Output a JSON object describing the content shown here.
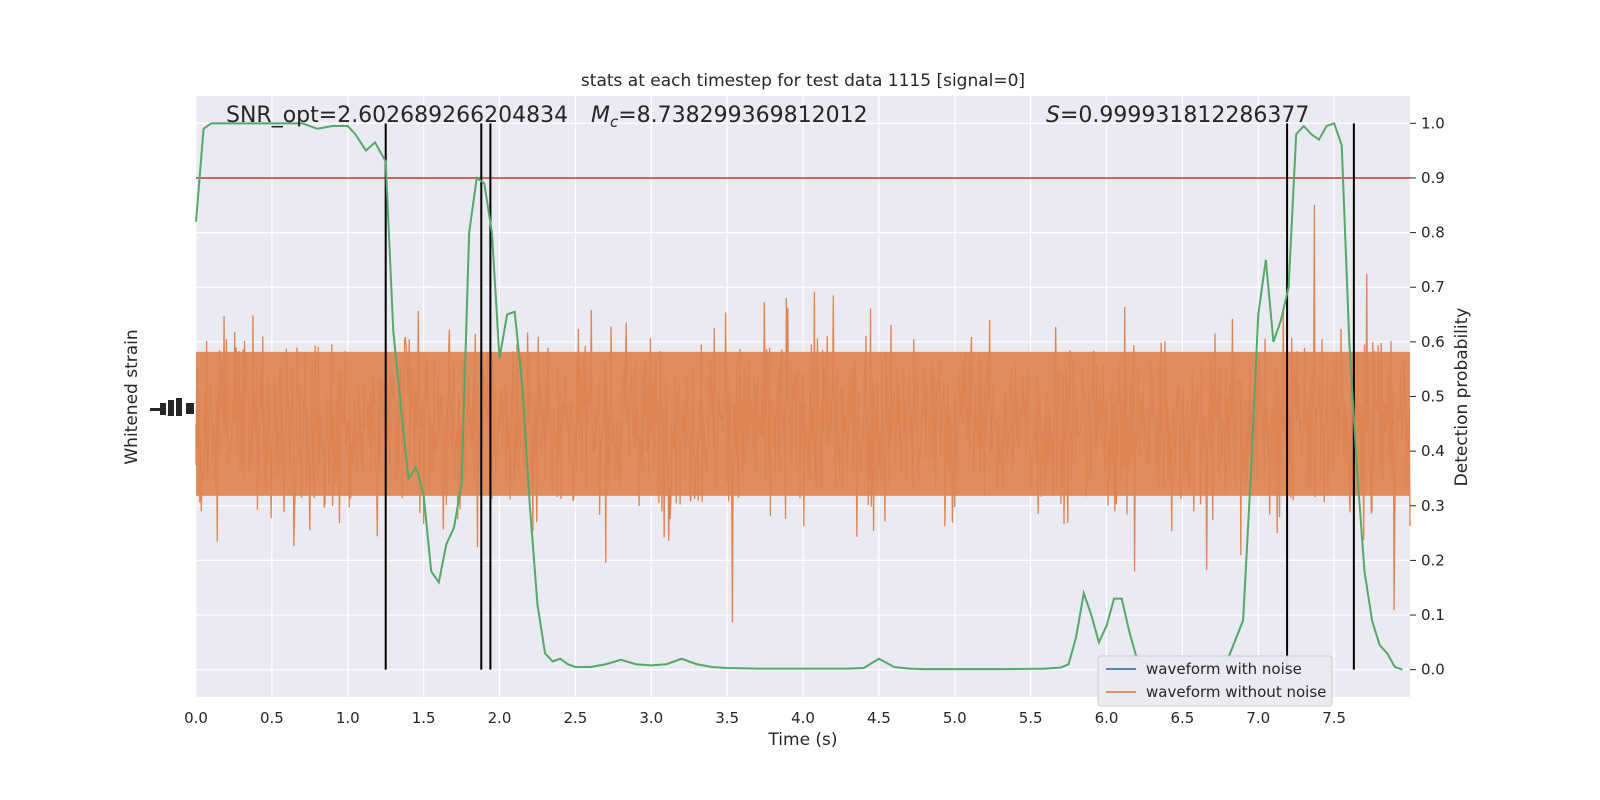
{
  "chart_data": {
    "type": "line",
    "title": "stats at each timestep for test data 1115 [signal=0]",
    "xlabel": "Time (s)",
    "ylabel_left": "Whitened strain",
    "ylabel_right": "Detection probability",
    "xlim": [
      0,
      8
    ],
    "ylim_right": [
      -0.05,
      1.05
    ],
    "x_ticks": [
      "0.0",
      "0.5",
      "1.0",
      "1.5",
      "2.0",
      "2.5",
      "3.0",
      "3.5",
      "4.0",
      "4.5",
      "5.0",
      "5.5",
      "6.0",
      "6.5",
      "7.0",
      "7.5"
    ],
    "y_ticks_right": [
      "0.0",
      "0.1",
      "0.2",
      "0.3",
      "0.4",
      "0.5",
      "0.6",
      "0.7",
      "0.8",
      "0.9",
      "1.0"
    ],
    "grid": true,
    "annotations": {
      "snr_label": "SNR_opt=2.602689266204834",
      "mc_symbol": "M",
      "mc_subscript": "c",
      "mc_value": "=8.738299369812012",
      "s_symbol": "S",
      "s_value": "=0.999931812286377"
    },
    "threshold": 0.9,
    "threshold_color": "#c0392b",
    "vertical_lines_x": [
      1.25,
      1.88,
      1.94,
      7.19,
      7.63
    ],
    "series": [
      {
        "name": "waveform with noise",
        "color": "#4c72b0"
      },
      {
        "name": "waveform without noise",
        "color": "#dd8452"
      }
    ],
    "probability_series": {
      "color": "#55a868",
      "x": [
        0.0,
        0.05,
        0.1,
        0.15,
        0.2,
        0.3,
        0.4,
        0.5,
        0.6,
        0.7,
        0.8,
        0.9,
        1.0,
        1.05,
        1.12,
        1.18,
        1.25,
        1.3,
        1.35,
        1.4,
        1.45,
        1.5,
        1.55,
        1.6,
        1.65,
        1.7,
        1.75,
        1.8,
        1.85,
        1.9,
        1.95,
        2.0,
        2.05,
        2.1,
        2.15,
        2.2,
        2.25,
        2.3,
        2.35,
        2.4,
        2.45,
        2.5,
        2.55,
        2.6,
        2.7,
        2.8,
        2.9,
        3.0,
        3.1,
        3.2,
        3.3,
        3.4,
        3.5,
        3.7,
        4.0,
        4.3,
        4.4,
        4.5,
        4.6,
        4.7,
        4.8,
        5.0,
        5.3,
        5.6,
        5.7,
        5.75,
        5.8,
        5.85,
        5.9,
        5.95,
        6.0,
        6.05,
        6.1,
        6.15,
        6.2,
        6.3,
        6.5,
        6.7,
        6.8,
        6.9,
        6.95,
        7.0,
        7.05,
        7.1,
        7.15,
        7.2,
        7.25,
        7.3,
        7.35,
        7.4,
        7.45,
        7.5,
        7.55,
        7.6,
        7.65,
        7.7,
        7.75,
        7.8,
        7.85,
        7.9,
        7.95
      ],
      "y": [
        0.82,
        0.99,
        1.0,
        1.0,
        1.0,
        1.0,
        1.0,
        1.0,
        1.0,
        1.0,
        0.99,
        0.995,
        0.995,
        0.98,
        0.95,
        0.965,
        0.93,
        0.62,
        0.48,
        0.35,
        0.37,
        0.32,
        0.18,
        0.16,
        0.23,
        0.26,
        0.34,
        0.8,
        0.9,
        0.89,
        0.8,
        0.57,
        0.65,
        0.655,
        0.52,
        0.3,
        0.12,
        0.03,
        0.015,
        0.02,
        0.01,
        0.005,
        0.005,
        0.005,
        0.01,
        0.018,
        0.01,
        0.008,
        0.01,
        0.02,
        0.01,
        0.005,
        0.003,
        0.002,
        0.002,
        0.002,
        0.003,
        0.02,
        0.005,
        0.002,
        0.001,
        0.001,
        0.001,
        0.002,
        0.004,
        0.01,
        0.06,
        0.14,
        0.1,
        0.05,
        0.08,
        0.13,
        0.13,
        0.07,
        0.02,
        0.005,
        0.004,
        0.004,
        0.02,
        0.09,
        0.35,
        0.65,
        0.75,
        0.6,
        0.64,
        0.7,
        0.98,
        0.995,
        0.98,
        0.97,
        0.995,
        1.0,
        0.96,
        0.6,
        0.37,
        0.18,
        0.09,
        0.045,
        0.03,
        0.005,
        0.0
      ]
    }
  }
}
